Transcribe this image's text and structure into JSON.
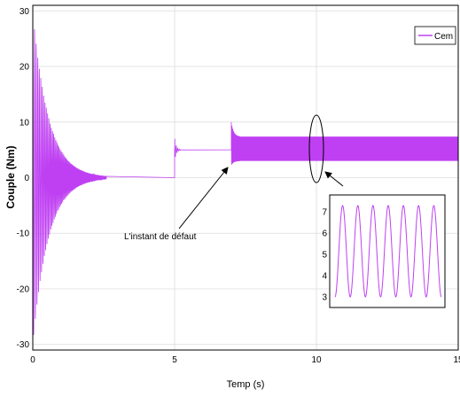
{
  "chart_data": {
    "type": "line",
    "xlabel": "Temp (s)",
    "ylabel": "Couple (Nm)",
    "xlim": [
      0,
      15
    ],
    "ylim": [
      -31,
      31
    ],
    "xticks": [
      0,
      5,
      10,
      15
    ],
    "yticks": [
      -30,
      -20,
      -10,
      0,
      10,
      20,
      30
    ],
    "grid": true,
    "legend": {
      "position": "top-right",
      "entries": [
        "Cem"
      ]
    },
    "series": [
      {
        "name": "Cem",
        "color": "#bf40f2",
        "segments": [
          {
            "t_start": 0,
            "t_end": 5,
            "behavior": "decaying oscillation",
            "peak_max": 30,
            "peak_min": -30,
            "settles_to": 0
          },
          {
            "t_start": 5,
            "t_end": 7,
            "behavior": "step to load torque",
            "overshoot": 7,
            "settles_to": 5
          },
          {
            "t_start": 7,
            "t_end": 15,
            "behavior": "sustained oscillation after fault",
            "overshoot": 10,
            "min": 3,
            "max": 7.4
          }
        ]
      }
    ],
    "annotations": [
      {
        "text": "L'instant de défaut",
        "points_to_t": 7
      }
    ],
    "inset": {
      "description": "zoom near t = 10 s",
      "yticks": [
        3,
        4,
        5,
        6,
        7
      ],
      "ylim": [
        2.5,
        7.8
      ],
      "cycles": 7,
      "min": 3,
      "max": 7.3
    }
  }
}
